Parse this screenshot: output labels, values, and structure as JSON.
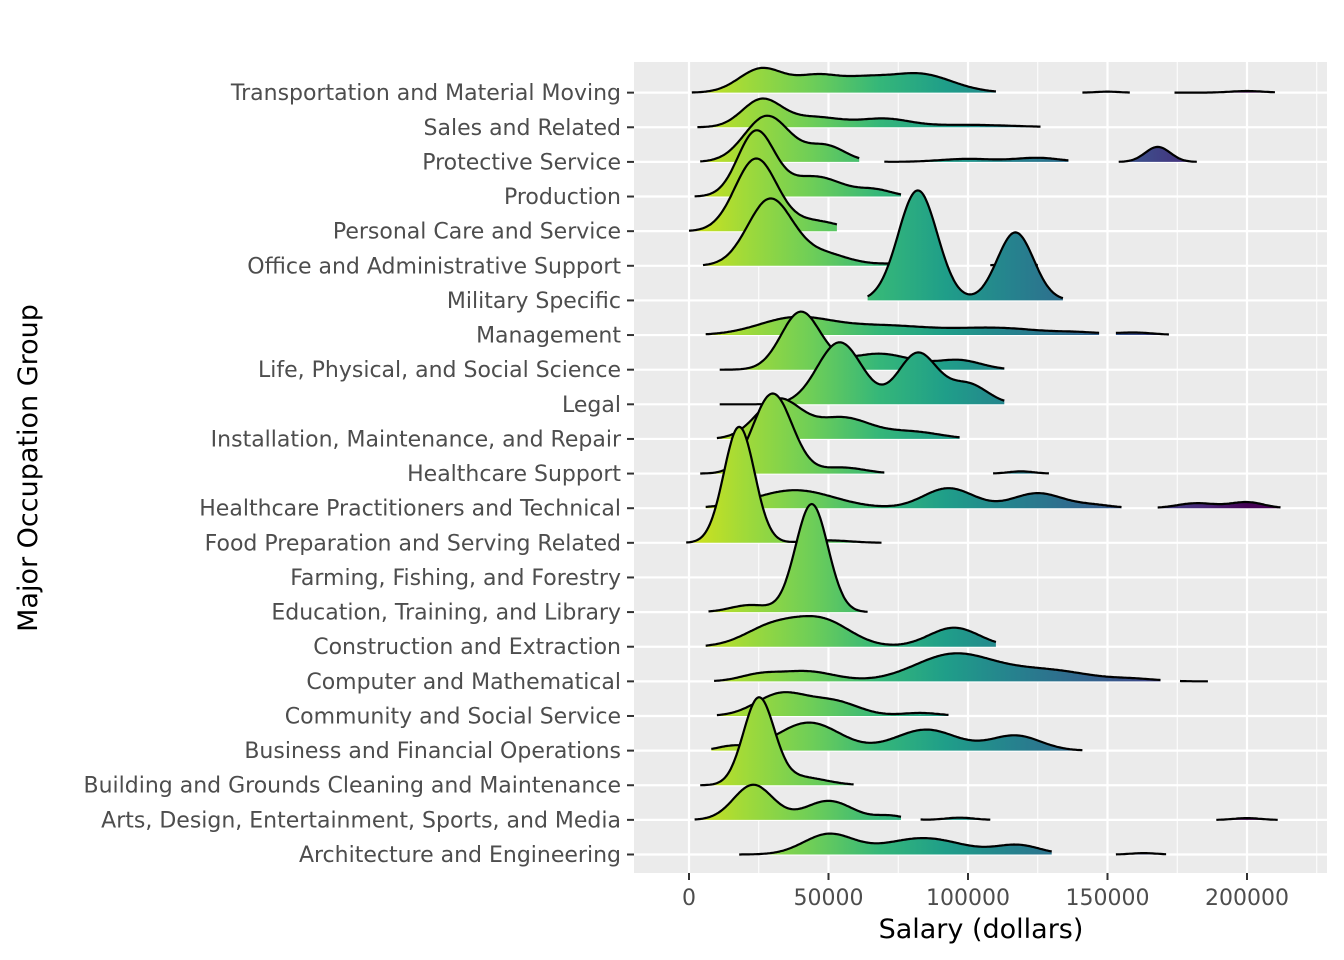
{
  "chart_data": {
    "type": "ridgeline",
    "xlabel": "Salary (dollars)",
    "ylabel": "Major Occupation Group",
    "xlim": [
      -20000,
      230000
    ],
    "x_ticks": [
      0,
      50000,
      100000,
      150000,
      200000
    ],
    "x_tick_labels": [
      "0",
      "50000",
      "100000",
      "150000",
      "200000"
    ],
    "grid": true,
    "fill": "viridis gradient along x (yellow-green at low salary, purple at high salary)",
    "categories": [
      "Architecture and Engineering",
      "Arts, Design, Entertainment, Sports, and Media",
      "Building and Grounds Cleaning and Maintenance",
      "Business and Financial Operations",
      "Community and Social Service",
      "Computer and Mathematical",
      "Construction and Extraction",
      "Education, Training, and Library",
      "Farming, Fishing, and Forestry",
      "Food Preparation and Serving Related",
      "Healthcare Practitioners and Technical",
      "Healthcare Support",
      "Installation, Maintenance, and Repair",
      "Legal",
      "Life, Physical, and Social Science",
      "Management",
      "Military Specific",
      "Office and Administrative Support",
      "Personal Care and Service",
      "Production",
      "Protective Service",
      "Sales and Related",
      "Transportation and Material Moving"
    ],
    "densities": [
      {
        "name": "Architecture and Engineering",
        "peaks": [
          [
            50000,
            1.0,
            9000
          ],
          [
            84000,
            0.82,
            14000
          ],
          [
            118000,
            0.45,
            8000
          ]
        ],
        "segments": [
          [
            18000,
            130000
          ],
          [
            153000,
            171000
          ]
        ],
        "small": [
          [
            163000,
            0.07,
            4500
          ]
        ]
      },
      {
        "name": "Arts, Design, Entertainment, Sports, and Media",
        "peaks": [
          [
            23000,
            1.75,
            7000
          ],
          [
            50000,
            0.95,
            8500
          ],
          [
            72000,
            0.2,
            5000
          ],
          [
            97000,
            0.11,
            5000
          ]
        ],
        "segments": [
          [
            2000,
            76000
          ],
          [
            83000,
            108000
          ],
          [
            189000,
            211000
          ]
        ],
        "small": [
          [
            200000,
            0.09,
            4500
          ]
        ]
      },
      {
        "name": "Building and Grounds Cleaning and Maintenance",
        "peaks": [
          [
            25000,
            4.3,
            5500
          ],
          [
            40000,
            0.4,
            9000
          ]
        ],
        "segments": [
          [
            4000,
            59000
          ]
        ],
        "small": []
      },
      {
        "name": "Business and Financial Operations",
        "peaks": [
          [
            43000,
            1.4,
            11000
          ],
          [
            85000,
            1.05,
            11000
          ],
          [
            117000,
            0.75,
            9000
          ],
          [
            15000,
            0.2,
            5000
          ]
        ],
        "segments": [
          [
            8000,
            141000
          ]
        ],
        "small": []
      },
      {
        "name": "Community and Social Service",
        "peaks": [
          [
            33000,
            1.1,
            9000
          ],
          [
            52000,
            0.7,
            9000
          ],
          [
            83000,
            0.15,
            7000
          ]
        ],
        "segments": [
          [
            10000,
            93000
          ]
        ],
        "small": []
      },
      {
        "name": "Computer and Mathematical",
        "peaks": [
          [
            25000,
            0.3,
            7000
          ],
          [
            42000,
            0.5,
            10000
          ],
          [
            95000,
            1.35,
            14000
          ],
          [
            128000,
            0.55,
            15000
          ],
          [
            160000,
            0.1,
            8000
          ]
        ],
        "segments": [
          [
            9000,
            169000
          ],
          [
            176000,
            186000
          ]
        ],
        "small": []
      },
      {
        "name": "Construction and Extraction",
        "peaks": [
          [
            30000,
            1.0,
            10000
          ],
          [
            48000,
            1.25,
            10000
          ],
          [
            95000,
            0.95,
            9000
          ]
        ],
        "segments": [
          [
            6000,
            110000
          ]
        ],
        "small": []
      },
      {
        "name": "Education, Training, and Library",
        "peaks": [
          [
            44000,
            5.4,
            5800
          ],
          [
            22000,
            0.35,
            7000
          ]
        ],
        "segments": [
          [
            7000,
            64000
          ]
        ],
        "small": []
      },
      {
        "name": "Farming, Fishing, and Forestry",
        "peaks": [],
        "segments": [],
        "small": []
      },
      {
        "name": "Food Preparation and Serving Related",
        "peaks": [
          [
            18000,
            5.8,
            5500
          ],
          [
            50000,
            0.12,
            8000
          ]
        ],
        "segments": [
          [
            -1000,
            69000
          ]
        ],
        "small": []
      },
      {
        "name": "Healthcare Practitioners and Technical",
        "peaks": [
          [
            38000,
            0.9,
            14000
          ],
          [
            93000,
            1.0,
            9000
          ],
          [
            125000,
            0.75,
            9000
          ],
          [
            145000,
            0.15,
            7000
          ],
          [
            182000,
            0.25,
            7000
          ],
          [
            200000,
            0.3,
            6000
          ]
        ],
        "segments": [
          [
            6000,
            155000
          ],
          [
            168000,
            212000
          ]
        ],
        "small": []
      },
      {
        "name": "Healthcare Support",
        "peaks": [
          [
            30000,
            4.0,
            7000
          ],
          [
            55000,
            0.3,
            8000
          ]
        ],
        "segments": [
          [
            4000,
            70000
          ],
          [
            109000,
            129000
          ]
        ],
        "small": [
          [
            119000,
            0.11,
            4500
          ]
        ]
      },
      {
        "name": "Installation, Maintenance, and Repair",
        "peaks": [
          [
            32000,
            1.95,
            8000
          ],
          [
            55000,
            1.05,
            10000
          ],
          [
            80000,
            0.35,
            10000
          ]
        ],
        "segments": [
          [
            10000,
            97000
          ]
        ],
        "small": []
      },
      {
        "name": "Legal",
        "peaks": [
          [
            54000,
            3.1,
            8000
          ],
          [
            82000,
            2.55,
            7000
          ],
          [
            100000,
            1.0,
            7000
          ]
        ],
        "segments": [
          [
            11000,
            113000
          ]
        ],
        "small": []
      },
      {
        "name": "Life, Physical, and Social Science",
        "peaks": [
          [
            40000,
            2.85,
            7000
          ],
          [
            68000,
            0.8,
            12000
          ],
          [
            97000,
            0.45,
            8000
          ]
        ],
        "segments": [
          [
            11000,
            113000
          ]
        ],
        "small": []
      },
      {
        "name": "Management",
        "peaks": [
          [
            38000,
            0.85,
            13000
          ],
          [
            70000,
            0.45,
            16000
          ],
          [
            110000,
            0.35,
            16000
          ],
          [
            140000,
            0.1,
            8000
          ],
          [
            160000,
            0.12,
            7000
          ]
        ],
        "segments": [
          [
            6000,
            147000
          ],
          [
            153000,
            172000
          ]
        ],
        "small": []
      },
      {
        "name": "Military Specific",
        "peaks": [
          [
            82000,
            5.5,
            7000
          ],
          [
            117000,
            3.4,
            6500
          ]
        ],
        "segments": [
          [
            64000,
            134000
          ]
        ],
        "small": []
      },
      {
        "name": "Office and Administrative Support",
        "peaks": [
          [
            29000,
            3.3,
            8000
          ],
          [
            48000,
            0.6,
            9000
          ],
          [
            75000,
            0.1,
            9000
          ]
        ],
        "segments": [
          [
            5000,
            84000
          ],
          [
            108000,
            125000
          ]
        ],
        "small": [
          [
            117000,
            0.14,
            5000
          ]
        ]
      },
      {
        "name": "Personal Care and Service",
        "peaks": [
          [
            24000,
            3.6,
            7500
          ],
          [
            45000,
            0.5,
            9000
          ]
        ],
        "segments": [
          [
            0,
            53000
          ]
        ],
        "small": []
      },
      {
        "name": "Production",
        "peaks": [
          [
            24000,
            3.2,
            6500
          ],
          [
            45000,
            1.0,
            10000
          ],
          [
            67000,
            0.3,
            6000
          ]
        ],
        "segments": [
          [
            2000,
            76000
          ]
        ],
        "small": []
      },
      {
        "name": "Protective Service",
        "peaks": [
          [
            28000,
            2.3,
            8000
          ],
          [
            49000,
            0.8,
            7000
          ],
          [
            100000,
            0.15,
            10000
          ],
          [
            125000,
            0.2,
            8000
          ],
          [
            168000,
            0.75,
            4500
          ]
        ],
        "segments": [
          [
            4000,
            61000
          ],
          [
            70000,
            136000
          ],
          [
            154000,
            182000
          ]
        ],
        "small": []
      },
      {
        "name": "Sales and Related",
        "peaks": [
          [
            26000,
            1.35,
            7000
          ],
          [
            45000,
            0.5,
            10000
          ],
          [
            70000,
            0.4,
            9000
          ],
          [
            100000,
            0.12,
            16000
          ]
        ],
        "segments": [
          [
            3000,
            126000
          ]
        ],
        "small": []
      },
      {
        "name": "Transportation and Material Moving",
        "peaks": [
          [
            26000,
            1.2,
            8000
          ],
          [
            46000,
            0.8,
            8000
          ],
          [
            82000,
            0.95,
            12000
          ],
          [
            62000,
            0.5,
            8000
          ]
        ],
        "segments": [
          [
            1000,
            110000
          ],
          [
            141000,
            158000
          ],
          [
            174000,
            210000
          ]
        ],
        "small": [
          [
            150000,
            0.05,
            4000
          ],
          [
            200000,
            0.08,
            6000
          ]
        ]
      }
    ]
  }
}
